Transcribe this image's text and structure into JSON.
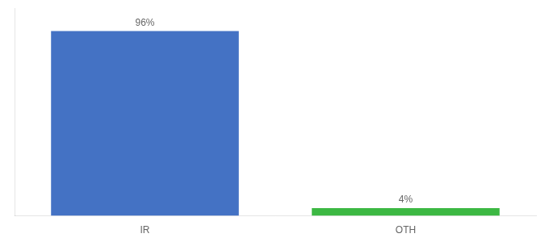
{
  "chart_data": {
    "type": "bar",
    "categories": [
      "IR",
      "OTH"
    ],
    "values": [
      96,
      4
    ],
    "value_labels": [
      "96%",
      "4%"
    ],
    "colors": [
      "#4472C4",
      "#3CB843"
    ],
    "ylim": [
      0,
      108
    ],
    "grid": false,
    "data_labels": true,
    "tick_labels": "x"
  }
}
